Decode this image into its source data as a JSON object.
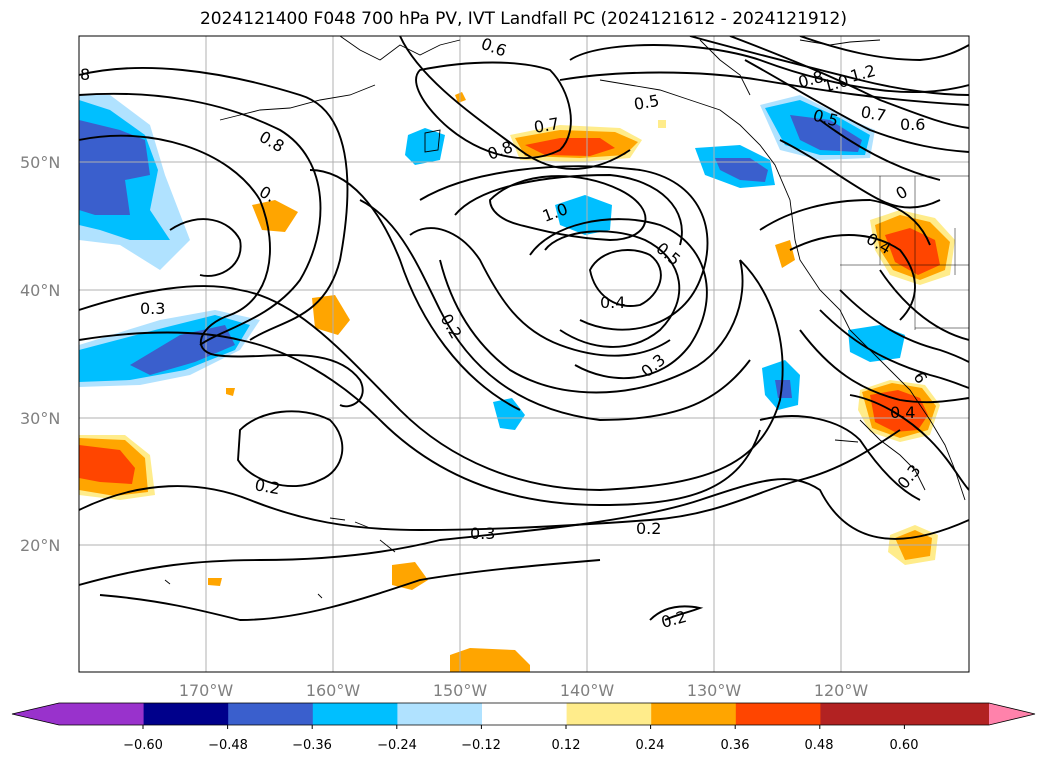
{
  "title": "2024121400 F048 700 hPa PV, IVT Landfall PC (2024121612 - 2024121912)",
  "lat_labels": [
    "50°N",
    "40°N",
    "30°N",
    "20°N"
  ],
  "lon_labels": [
    "170°W",
    "160°W",
    "150°W",
    "140°W",
    "130°W",
    "120°W"
  ],
  "colorbar": {
    "ticks": [
      "−0.60",
      "−0.48",
      "−0.36",
      "−0.24",
      "−0.12",
      "0.12",
      "0.24",
      "0.36",
      "0.48",
      "0.60"
    ],
    "colors": [
      "#9932cc",
      "#00008b",
      "#3a5fcd",
      "#00bfff",
      "#b0e2ff",
      "#ffffff",
      "#ffec8b",
      "#ffa500",
      "#ff4500",
      "#b22222",
      "#ff82ab"
    ]
  },
  "contour_labels": [
    "8",
    "0.8",
    "0.",
    "0.3",
    "0.6",
    "0.5",
    "0.7",
    "0.8",
    "1.0",
    "0.5",
    "0.4",
    "0.2",
    "0.3",
    "0.2",
    "0.3",
    "0.2",
    "0.2",
    "1.2",
    "1.0",
    "0.8",
    "0.5",
    "0.7",
    "0.6",
    "0.4",
    "0.4",
    "0.3",
    "6",
    "0"
  ],
  "chart_data": {
    "type": "heatmap",
    "title": "2024121400 F048 700 hPa PV, IVT Landfall PC (2024121612 - 2024121912)",
    "variables": [
      "700 hPa PV (contours)",
      "IVT Landfall PC (shaded)"
    ],
    "longitude_range": [
      "180°W",
      "110°W"
    ],
    "latitude_range": [
      "10°N",
      "60°N"
    ],
    "shading_levels": [
      -0.6,
      -0.48,
      -0.36,
      -0.24,
      -0.12,
      0.12,
      0.24,
      0.36,
      0.48,
      0.6
    ],
    "contour_values": [
      0.2,
      0.3,
      0.4,
      0.5,
      0.6,
      0.7,
      0.8,
      1.0,
      1.2
    ],
    "grid": true
  }
}
